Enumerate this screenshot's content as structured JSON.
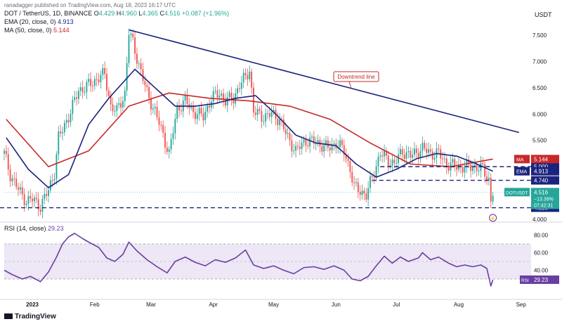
{
  "header": {
    "published": "ranadagger published on TradingView.com, Aug 18, 2023 16:17 UTC",
    "symbol_line": {
      "name": "DOT / TetherUS, 1D, BINANCE",
      "o_label": "O",
      "o": "4.429",
      "h_label": "H",
      "h": "4.960",
      "l_label": "L",
      "l": "4.365",
      "c_label": "C",
      "c": "4.516",
      "change": "+0.087 (+1.96%)"
    },
    "ema_line": {
      "label": "EMA (20, close, 0)",
      "value": "4.913"
    },
    "ma_line": {
      "label": "MA (50, close, 0)",
      "value": "5.144"
    },
    "rsi_line": {
      "label": "RSI (14, close)",
      "value": "29.23"
    },
    "currency": "USDT"
  },
  "footer": {
    "brand": "TradingView"
  },
  "colors": {
    "up": "#26a69a",
    "down": "#ef5350",
    "ema": "#1a237e",
    "ma": "#c62828",
    "trendline": "#1a237e",
    "level": "#1a237e",
    "rsi": "#6a3ea1",
    "rsi_band": "#ede7f6",
    "price_tag": "#26a69a",
    "annotation": "#c62828"
  },
  "chart_data": [
    {
      "type": "candlestick",
      "title": "DOT / TetherUS, 1D, BINANCE",
      "x_months": [
        "2023",
        "Feb",
        "Mar",
        "Apr",
        "May",
        "Jun",
        "Jul",
        "Aug",
        "Sep"
      ],
      "ylim": [
        4.0,
        7.9
      ],
      "y_ticks": [
        "7.500",
        "7.000",
        "6.500",
        "6.000",
        "5.500",
        "5.000",
        "4.500",
        "4.000"
      ],
      "y_tick_values": [
        7.5,
        7.0,
        6.5,
        6.0,
        5.5,
        5.0,
        4.5,
        4.0
      ],
      "close_path": [
        {
          "date": "2022-12-18",
          "close": 5.25
        },
        {
          "date": "2022-12-21",
          "close": 4.85
        },
        {
          "date": "2022-12-26",
          "close": 4.5
        },
        {
          "date": "2022-12-29",
          "close": 4.35
        },
        {
          "date": "2023-01-01",
          "close": 4.38
        },
        {
          "date": "2023-01-05",
          "close": 4.25
        },
        {
          "date": "2023-01-09",
          "close": 4.55
        },
        {
          "date": "2023-01-12",
          "close": 4.9
        },
        {
          "date": "2023-01-14",
          "close": 5.55
        },
        {
          "date": "2023-01-16",
          "close": 5.7
        },
        {
          "date": "2023-01-20",
          "close": 6.05
        },
        {
          "date": "2023-01-24",
          "close": 6.45
        },
        {
          "date": "2023-01-27",
          "close": 6.5
        },
        {
          "date": "2023-01-31",
          "close": 6.6
        },
        {
          "date": "2023-02-03",
          "close": 6.7
        },
        {
          "date": "2023-02-06",
          "close": 6.75
        },
        {
          "date": "2023-02-09",
          "close": 6.15
        },
        {
          "date": "2023-02-12",
          "close": 6.05
        },
        {
          "date": "2023-02-16",
          "close": 6.4
        },
        {
          "date": "2023-02-18",
          "close": 7.55
        },
        {
          "date": "2023-02-20",
          "close": 7.35
        },
        {
          "date": "2023-02-24",
          "close": 6.8
        },
        {
          "date": "2023-02-27",
          "close": 6.4
        },
        {
          "date": "2023-03-03",
          "close": 6.05
        },
        {
          "date": "2023-03-07",
          "close": 5.6
        },
        {
          "date": "2023-03-10",
          "close": 5.25
        },
        {
          "date": "2023-03-14",
          "close": 6.1
        },
        {
          "date": "2023-03-18",
          "close": 6.25
        },
        {
          "date": "2023-03-22",
          "close": 6.05
        },
        {
          "date": "2023-03-27",
          "close": 5.95
        },
        {
          "date": "2023-03-31",
          "close": 6.3
        },
        {
          "date": "2023-04-04",
          "close": 6.4
        },
        {
          "date": "2023-04-07",
          "close": 6.25
        },
        {
          "date": "2023-04-11",
          "close": 6.3
        },
        {
          "date": "2023-04-14",
          "close": 6.55
        },
        {
          "date": "2023-04-17",
          "close": 6.7
        },
        {
          "date": "2023-04-19",
          "close": 6.85
        },
        {
          "date": "2023-04-21",
          "close": 6.05
        },
        {
          "date": "2023-04-25",
          "close": 5.95
        },
        {
          "date": "2023-04-30",
          "close": 6.0
        },
        {
          "date": "2023-05-04",
          "close": 5.9
        },
        {
          "date": "2023-05-08",
          "close": 5.55
        },
        {
          "date": "2023-05-12",
          "close": 5.3
        },
        {
          "date": "2023-05-17",
          "close": 5.5
        },
        {
          "date": "2023-05-23",
          "close": 5.45
        },
        {
          "date": "2023-05-28",
          "close": 5.35
        },
        {
          "date": "2023-06-01",
          "close": 5.45
        },
        {
          "date": "2023-06-05",
          "close": 5.3
        },
        {
          "date": "2023-06-08",
          "close": 4.95
        },
        {
          "date": "2023-06-10",
          "close": 4.6
        },
        {
          "date": "2023-06-13",
          "close": 4.55
        },
        {
          "date": "2023-06-16",
          "close": 4.45
        },
        {
          "date": "2023-06-19",
          "close": 4.8
        },
        {
          "date": "2023-06-23",
          "close": 5.25
        },
        {
          "date": "2023-06-26",
          "close": 5.15
        },
        {
          "date": "2023-06-30",
          "close": 5.05
        },
        {
          "date": "2023-07-04",
          "close": 5.3
        },
        {
          "date": "2023-07-08",
          "close": 5.2
        },
        {
          "date": "2023-07-12",
          "close": 5.3
        },
        {
          "date": "2023-07-14",
          "close": 5.35
        },
        {
          "date": "2023-07-18",
          "close": 5.25
        },
        {
          "date": "2023-07-22",
          "close": 5.25
        },
        {
          "date": "2023-07-26",
          "close": 5.05
        },
        {
          "date": "2023-07-31",
          "close": 5.0
        },
        {
          "date": "2023-08-04",
          "close": 5.0
        },
        {
          "date": "2023-08-09",
          "close": 5.0
        },
        {
          "date": "2023-08-13",
          "close": 4.95
        },
        {
          "date": "2023-08-16",
          "close": 4.75
        },
        {
          "date": "2023-08-17",
          "close": 4.35
        },
        {
          "date": "2023-08-18",
          "close": 4.516
        }
      ],
      "ema": [
        {
          "date": "2022-12-19",
          "value": 5.55
        },
        {
          "date": "2022-12-30",
          "value": 4.95
        },
        {
          "date": "2023-01-09",
          "value": 4.6
        },
        {
          "date": "2023-01-19",
          "value": 4.85
        },
        {
          "date": "2023-01-29",
          "value": 5.8
        },
        {
          "date": "2023-02-08",
          "value": 6.3
        },
        {
          "date": "2023-02-21",
          "value": 6.85
        },
        {
          "date": "2023-03-03",
          "value": 6.5
        },
        {
          "date": "2023-03-13",
          "value": 6.15
        },
        {
          "date": "2023-03-23",
          "value": 6.15
        },
        {
          "date": "2023-04-02",
          "value": 6.2
        },
        {
          "date": "2023-04-12",
          "value": 6.3
        },
        {
          "date": "2023-04-22",
          "value": 6.35
        },
        {
          "date": "2023-05-02",
          "value": 6.0
        },
        {
          "date": "2023-05-12",
          "value": 5.6
        },
        {
          "date": "2023-05-22",
          "value": 5.45
        },
        {
          "date": "2023-06-01",
          "value": 5.4
        },
        {
          "date": "2023-06-11",
          "value": 5.05
        },
        {
          "date": "2023-06-21",
          "value": 4.8
        },
        {
          "date": "2023-07-01",
          "value": 4.95
        },
        {
          "date": "2023-07-11",
          "value": 5.15
        },
        {
          "date": "2023-07-21",
          "value": 5.25
        },
        {
          "date": "2023-07-31",
          "value": 5.2
        },
        {
          "date": "2023-08-10",
          "value": 5.05
        },
        {
          "date": "2023-08-18",
          "value": 4.913
        }
      ],
      "ma": [
        {
          "date": "2022-12-19",
          "value": 5.9
        },
        {
          "date": "2023-01-09",
          "value": 5.0
        },
        {
          "date": "2023-01-29",
          "value": 5.3
        },
        {
          "date": "2023-02-18",
          "value": 6.15
        },
        {
          "date": "2023-03-10",
          "value": 6.4
        },
        {
          "date": "2023-03-30",
          "value": 6.3
        },
        {
          "date": "2023-04-19",
          "value": 6.25
        },
        {
          "date": "2023-05-09",
          "value": 6.15
        },
        {
          "date": "2023-05-29",
          "value": 5.9
        },
        {
          "date": "2023-06-18",
          "value": 5.45
        },
        {
          "date": "2023-07-08",
          "value": 5.05
        },
        {
          "date": "2023-07-28",
          "value": 5.0
        },
        {
          "date": "2023-08-18",
          "value": 5.144
        }
      ],
      "trendline": {
        "start": {
          "date": "2023-02-18",
          "value": 7.6
        },
        "end": {
          "date": "2023-08-31",
          "value": 5.65
        },
        "label": "Downtrend line"
      },
      "levels": [
        {
          "value": 5.0,
          "label": "5.000"
        },
        {
          "value": 4.74,
          "label": "4.740"
        },
        {
          "value": 4.22,
          "label": "4.220"
        }
      ],
      "price_tags": {
        "ma": {
          "label": "MA",
          "value": "5.144"
        },
        "ema": {
          "label": "EMA",
          "value": "4.913"
        },
        "last": {
          "label": "DOTUSDT",
          "value": "4.516",
          "change": "−13.39%",
          "countdown": "07:42:31"
        }
      }
    },
    {
      "type": "line",
      "title": "RSI (14, close)",
      "ylim": [
        10,
        90
      ],
      "y_ticks": [
        "80.00",
        "60.00",
        "40.00"
      ],
      "y_tick_values": [
        80,
        60,
        40
      ],
      "band": [
        30,
        70
      ],
      "series": [
        {
          "date": "2022-12-18",
          "value": 40
        },
        {
          "date": "2022-12-22",
          "value": 35
        },
        {
          "date": "2022-12-27",
          "value": 30
        },
        {
          "date": "2022-12-31",
          "value": 33
        },
        {
          "date": "2023-01-05",
          "value": 27
        },
        {
          "date": "2023-01-09",
          "value": 38
        },
        {
          "date": "2023-01-13",
          "value": 55
        },
        {
          "date": "2023-01-16",
          "value": 70
        },
        {
          "date": "2023-01-19",
          "value": 78
        },
        {
          "date": "2023-01-22",
          "value": 82
        },
        {
          "date": "2023-01-26",
          "value": 76
        },
        {
          "date": "2023-01-29",
          "value": 72
        },
        {
          "date": "2023-02-03",
          "value": 66
        },
        {
          "date": "2023-02-07",
          "value": 54
        },
        {
          "date": "2023-02-11",
          "value": 50
        },
        {
          "date": "2023-02-15",
          "value": 58
        },
        {
          "date": "2023-02-18",
          "value": 72
        },
        {
          "date": "2023-02-22",
          "value": 62
        },
        {
          "date": "2023-02-27",
          "value": 52
        },
        {
          "date": "2023-03-04",
          "value": 44
        },
        {
          "date": "2023-03-09",
          "value": 37
        },
        {
          "date": "2023-03-13",
          "value": 50
        },
        {
          "date": "2023-03-18",
          "value": 55
        },
        {
          "date": "2023-03-23",
          "value": 49
        },
        {
          "date": "2023-03-28",
          "value": 45
        },
        {
          "date": "2023-04-02",
          "value": 52
        },
        {
          "date": "2023-04-07",
          "value": 49
        },
        {
          "date": "2023-04-12",
          "value": 54
        },
        {
          "date": "2023-04-17",
          "value": 63
        },
        {
          "date": "2023-04-21",
          "value": 46
        },
        {
          "date": "2023-04-26",
          "value": 42
        },
        {
          "date": "2023-05-01",
          "value": 45
        },
        {
          "date": "2023-05-06",
          "value": 40
        },
        {
          "date": "2023-05-11",
          "value": 36
        },
        {
          "date": "2023-05-16",
          "value": 43
        },
        {
          "date": "2023-05-21",
          "value": 44
        },
        {
          "date": "2023-05-26",
          "value": 41
        },
        {
          "date": "2023-05-31",
          "value": 45
        },
        {
          "date": "2023-06-05",
          "value": 40
        },
        {
          "date": "2023-06-09",
          "value": 30
        },
        {
          "date": "2023-06-13",
          "value": 28
        },
        {
          "date": "2023-06-17",
          "value": 33
        },
        {
          "date": "2023-06-21",
          "value": 45
        },
        {
          "date": "2023-06-25",
          "value": 56
        },
        {
          "date": "2023-06-29",
          "value": 48
        },
        {
          "date": "2023-07-03",
          "value": 55
        },
        {
          "date": "2023-07-07",
          "value": 50
        },
        {
          "date": "2023-07-12",
          "value": 54
        },
        {
          "date": "2023-07-14",
          "value": 60
        },
        {
          "date": "2023-07-18",
          "value": 52
        },
        {
          "date": "2023-07-22",
          "value": 55
        },
        {
          "date": "2023-07-27",
          "value": 48
        },
        {
          "date": "2023-07-31",
          "value": 44
        },
        {
          "date": "2023-08-04",
          "value": 46
        },
        {
          "date": "2023-08-08",
          "value": 44
        },
        {
          "date": "2023-08-12",
          "value": 46
        },
        {
          "date": "2023-08-15",
          "value": 42
        },
        {
          "date": "2023-08-17",
          "value": 22
        },
        {
          "date": "2023-08-18",
          "value": 29.23
        }
      ],
      "price_tag": {
        "label": "RSI",
        "value": "29.23"
      }
    }
  ]
}
